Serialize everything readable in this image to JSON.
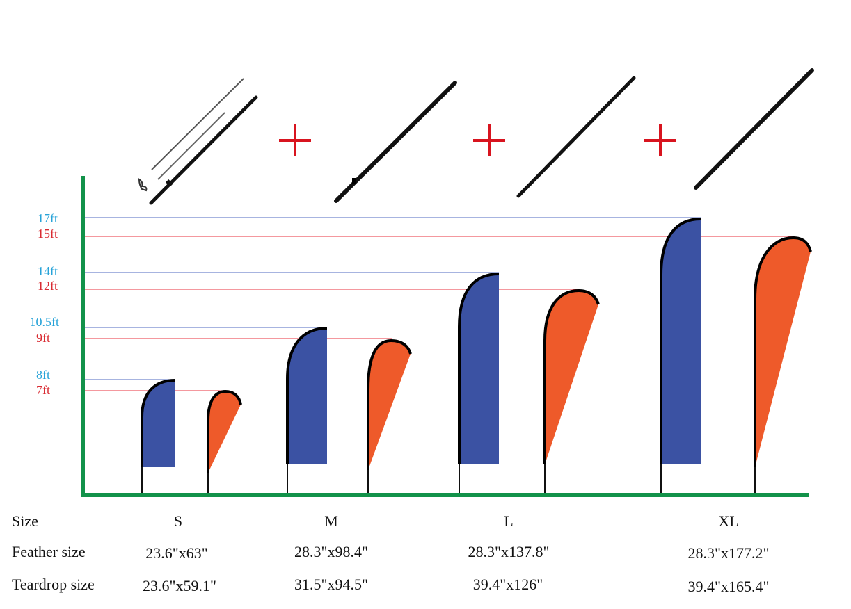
{
  "colors": {
    "axis": "#12924a",
    "feather_fill": "#3b52a3",
    "teardrop_fill": "#ee5a2a",
    "feather_line": "#8a9bd6",
    "teardrop_line": "#e8323c",
    "feather_label": "#27a3d8",
    "teardrop_label": "#d92b32",
    "plus": "#d8141f",
    "pole": "#111111"
  },
  "height_labels": {
    "feather": [
      "17ft",
      "14ft",
      "10.5ft",
      "8ft"
    ],
    "teardrop": [
      "15ft",
      "12ft",
      "9ft",
      "7ft"
    ]
  },
  "icons": {
    "pole_kit": "pole-kit-icon",
    "pole_section": "pole-section-icon",
    "plus": "plus-icon"
  },
  "table": {
    "row_labels": [
      "Size",
      "Feather size",
      "Teardrop size"
    ],
    "sizes": [
      "S",
      "M",
      "L",
      "XL"
    ],
    "feather_sizes": [
      "23.6\"x63\"",
      "28.3\"x98.4\"",
      "28.3\"x137.8\"",
      "28.3\"x177.2\""
    ],
    "teardrop_sizes": [
      "23.6\"x59.1\"",
      "31.5\"x94.5\"",
      "39.4\"x126\"",
      "39.4\"x165.4\""
    ]
  }
}
